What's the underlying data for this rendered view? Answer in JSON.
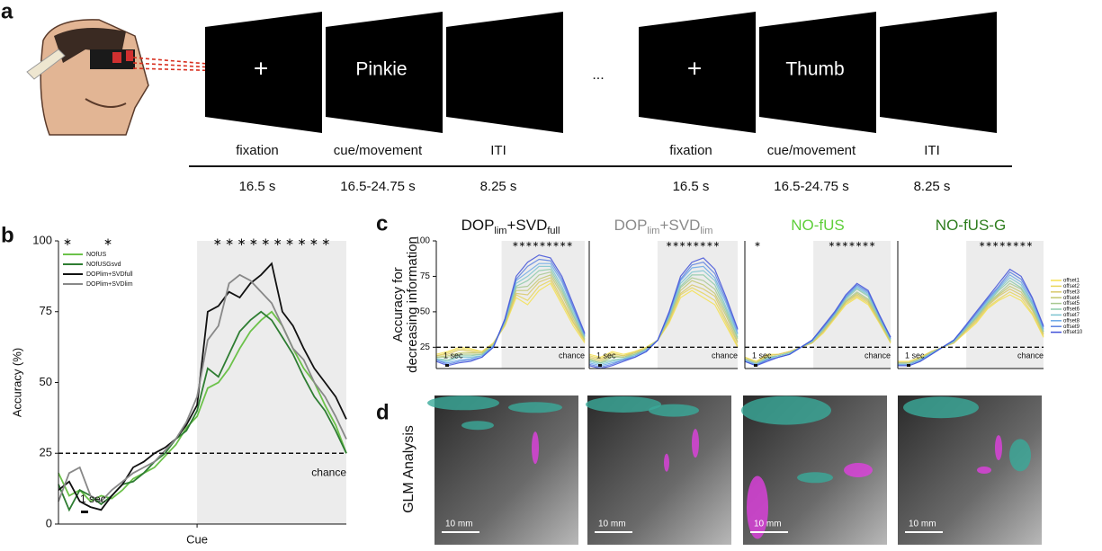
{
  "panel_labels": [
    "a",
    "b",
    "c",
    "d"
  ],
  "trial": {
    "screens": [
      {
        "text": "+",
        "label": "fixation",
        "duration": "16.5 s"
      },
      {
        "text": "Pinkie",
        "label": "cue/movement",
        "duration": "16.5-24.75 s"
      },
      {
        "label": "ITI",
        "duration": "8.25 s"
      },
      {
        "text": "+",
        "label": "fixation",
        "duration": "16.5 s"
      },
      {
        "text": "Thumb",
        "label": "cue/movement",
        "duration": "16.5-24.75 s"
      },
      {
        "label": "ITI",
        "duration": "8.25 s"
      }
    ],
    "ellipsis": "..."
  },
  "glm": {
    "y_label": "GLM Analysis",
    "scale_labels": [
      "10 mm",
      "10 mm",
      "10 mm",
      "10 mm"
    ]
  },
  "chart_data": [
    {
      "type": "line",
      "y_label": "Accuracy (%)",
      "categories": [
        null,
        null,
        null,
        null,
        null,
        null,
        null,
        null,
        null,
        null,
        null,
        null,
        null,
        "Cue",
        null,
        null,
        null,
        null,
        null,
        null,
        null,
        null,
        null,
        null,
        null,
        null,
        null,
        null
      ],
      "series": [
        {
          "name": "NOfUS",
          "color": "#6cc24a",
          "values": [
            18,
            10,
            12,
            8,
            10,
            9,
            12,
            16,
            18,
            20,
            24,
            28,
            34,
            38,
            48,
            50,
            55,
            62,
            68,
            72,
            75,
            70,
            62,
            55,
            50,
            42,
            35,
            25
          ]
        },
        {
          "name": "NOfUSGsvd",
          "color": "#2e7d32",
          "values": [
            14,
            5,
            12,
            10,
            7,
            10,
            14,
            15,
            18,
            22,
            25,
            30,
            33,
            40,
            55,
            52,
            60,
            68,
            72,
            75,
            72,
            66,
            60,
            52,
            45,
            40,
            33,
            25
          ]
        },
        {
          "name": "DOPlim+SVDfull",
          "color": "#111111",
          "values": [
            12,
            15,
            8,
            6,
            5,
            10,
            14,
            20,
            22,
            25,
            27,
            30,
            35,
            42,
            75,
            77,
            82,
            80,
            85,
            88,
            92,
            75,
            70,
            62,
            55,
            50,
            45,
            37
          ]
        },
        {
          "name": "DOPlim+SVDlim",
          "color": "#888888",
          "values": [
            8,
            18,
            20,
            10,
            8,
            12,
            15,
            18,
            20,
            22,
            26,
            30,
            36,
            45,
            65,
            70,
            85,
            88,
            86,
            82,
            78,
            70,
            62,
            58,
            50,
            45,
            38,
            30
          ]
        }
      ],
      "ylim": [
        0,
        100
      ],
      "yticks": [
        0,
        25,
        50,
        75,
        100
      ],
      "legend": "upper left",
      "chance_line": 25,
      "chance_label": "chance",
      "scale_label": "1 sec",
      "sig": [
        "∗",
        "∗",
        "∗ ∗ ∗ ∗ ∗ ∗ ∗ ∗ ∗ ∗"
      ]
    },
    {
      "type": "line",
      "title": [
        {
          "text": "DOP"
        },
        {
          "text": "lim",
          "sub": true
        },
        {
          "text": "+SVD"
        },
        {
          "text": "full",
          "sub": true
        }
      ],
      "title_color": "#111111",
      "y_label": [
        "Accuracy for",
        "decreasing information"
      ],
      "series": [
        {
          "name": "offset1",
          "color": "#f5e050",
          "values": [
            20,
            22,
            25,
            24,
            22,
            28,
            40,
            60,
            55,
            65,
            70,
            55,
            40,
            28
          ]
        },
        {
          "name": "offset2",
          "color": "#e8d55a",
          "values": [
            19,
            21,
            24,
            23,
            22,
            28,
            41,
            62,
            58,
            68,
            72,
            57,
            42,
            29
          ]
        },
        {
          "name": "offset3",
          "color": "#d8c86a",
          "values": [
            19,
            20,
            23,
            22,
            21,
            27,
            41,
            63,
            62,
            71,
            74,
            59,
            43,
            30
          ]
        },
        {
          "name": "offset4",
          "color": "#c2c870",
          "values": [
            18,
            19,
            21,
            21,
            21,
            27,
            42,
            65,
            65,
            73,
            76,
            62,
            45,
            30
          ]
        },
        {
          "name": "offset5",
          "color": "#a8c890",
          "values": [
            18,
            18,
            20,
            20,
            20,
            27,
            42,
            67,
            68,
            76,
            78,
            64,
            47,
            31
          ]
        },
        {
          "name": "offset6",
          "color": "#8ccaa8",
          "values": [
            17,
            16,
            19,
            19,
            20,
            26,
            43,
            68,
            72,
            79,
            80,
            66,
            48,
            32
          ]
        },
        {
          "name": "offset7",
          "color": "#7cc4d0",
          "values": [
            17,
            15,
            18,
            18,
            19,
            26,
            43,
            70,
            75,
            82,
            82,
            68,
            50,
            33
          ]
        },
        {
          "name": "offset8",
          "color": "#6aa8e8",
          "values": [
            16,
            14,
            16,
            17,
            19,
            26,
            44,
            72,
            78,
            84,
            84,
            71,
            52,
            33
          ]
        },
        {
          "name": "offset9",
          "color": "#5a80e0",
          "values": [
            16,
            13,
            15,
            16,
            18,
            25,
            44,
            73,
            82,
            87,
            86,
            73,
            53,
            34
          ]
        },
        {
          "name": "offset10",
          "color": "#4050d8",
          "values": [
            15,
            12,
            14,
            15,
            18,
            25,
            45,
            75,
            85,
            90,
            88,
            75,
            55,
            35
          ]
        }
      ],
      "ylim": [
        10,
        100
      ],
      "yticks": [
        25,
        50,
        75,
        100
      ],
      "chance_line": 25,
      "chance_label": "chance",
      "scale_label": "1 sec",
      "sig": [
        "∗∗∗∗∗∗∗∗∗"
      ]
    },
    {
      "type": "line",
      "title": [
        {
          "text": "DOP"
        },
        {
          "text": "lim",
          "sub": true
        },
        {
          "text": "+SVD"
        },
        {
          "text": "lim",
          "sub": true
        }
      ],
      "title_color": "#8a8a8a",
      "series": [
        {
          "color": "#f5e050",
          "values": [
            20,
            18,
            22,
            20,
            22,
            25,
            30,
            42,
            60,
            65,
            60,
            55,
            40,
            25
          ]
        },
        {
          "color": "#e8d55a",
          "values": [
            19,
            17,
            21,
            19,
            22,
            25,
            30,
            43,
            62,
            67,
            63,
            58,
            42,
            26
          ]
        },
        {
          "color": "#d8c86a",
          "values": [
            18,
            16,
            20,
            19,
            21,
            24,
            30,
            44,
            63,
            69,
            66,
            61,
            44,
            28
          ]
        },
        {
          "color": "#c2c870",
          "values": [
            17,
            15,
            19,
            18,
            21,
            24,
            30,
            45,
            65,
            72,
            69,
            63,
            47,
            29
          ]
        },
        {
          "color": "#a8c890",
          "values": [
            16,
            14,
            18,
            18,
            20,
            24,
            30,
            46,
            67,
            74,
            72,
            66,
            49,
            31
          ]
        },
        {
          "color": "#8ccaa8",
          "values": [
            16,
            14,
            16,
            17,
            20,
            23,
            30,
            46,
            68,
            76,
            76,
            69,
            51,
            32
          ]
        },
        {
          "color": "#7cc4d0",
          "values": [
            15,
            13,
            15,
            17,
            19,
            23,
            30,
            47,
            70,
            78,
            79,
            72,
            53,
            34
          ]
        },
        {
          "color": "#6aa8e8",
          "values": [
            14,
            12,
            14,
            16,
            19,
            23,
            30,
            48,
            72,
            81,
            82,
            74,
            56,
            35
          ]
        },
        {
          "color": "#5a80e0",
          "values": [
            13,
            11,
            13,
            16,
            18,
            22,
            30,
            49,
            73,
            83,
            85,
            77,
            58,
            37
          ]
        },
        {
          "color": "#4050d8",
          "values": [
            12,
            10,
            12,
            15,
            18,
            22,
            30,
            50,
            75,
            85,
            88,
            80,
            60,
            38
          ]
        }
      ],
      "ylim": [
        10,
        100
      ],
      "chance_line": 25,
      "chance_label": "chance",
      "scale_label": "1 sec",
      "sig": [
        "∗∗∗∗∗∗∗∗"
      ]
    },
    {
      "type": "line",
      "title": [
        {
          "text": "NO-fUS"
        }
      ],
      "title_color": "#5ecf3a",
      "series": [
        {
          "color": "#f5e050",
          "values": [
            18,
            15,
            20,
            20,
            22,
            25,
            28,
            35,
            45,
            55,
            60,
            55,
            42,
            28
          ]
        },
        {
          "color": "#e8d55a",
          "values": [
            18,
            15,
            19,
            20,
            22,
            25,
            28,
            36,
            46,
            56,
            61,
            56,
            43,
            28
          ]
        },
        {
          "color": "#d8c86a",
          "values": [
            17,
            14,
            19,
            20,
            22,
            25,
            28,
            36,
            46,
            57,
            62,
            57,
            43,
            29
          ]
        },
        {
          "color": "#c2c870",
          "values": [
            17,
            14,
            18,
            19,
            21,
            25,
            29,
            37,
            47,
            57,
            63,
            58,
            44,
            29
          ]
        },
        {
          "color": "#a8c890",
          "values": [
            17,
            14,
            18,
            19,
            21,
            25,
            29,
            37,
            47,
            58,
            64,
            59,
            45,
            30
          ]
        },
        {
          "color": "#8ccaa8",
          "values": [
            16,
            13,
            17,
            19,
            21,
            25,
            29,
            38,
            48,
            59,
            66,
            61,
            45,
            30
          ]
        },
        {
          "color": "#7cc4d0",
          "values": [
            16,
            13,
            17,
            19,
            21,
            25,
            29,
            38,
            48,
            60,
            67,
            62,
            46,
            31
          ]
        },
        {
          "color": "#6aa8e8",
          "values": [
            16,
            13,
            16,
            18,
            20,
            25,
            30,
            39,
            49,
            60,
            68,
            63,
            47,
            31
          ]
        },
        {
          "color": "#5a80e0",
          "values": [
            15,
            12,
            16,
            18,
            20,
            25,
            30,
            39,
            49,
            61,
            69,
            64,
            47,
            32
          ]
        },
        {
          "color": "#4050d8",
          "values": [
            15,
            12,
            15,
            18,
            20,
            25,
            30,
            40,
            50,
            62,
            70,
            65,
            48,
            32
          ]
        }
      ],
      "ylim": [
        10,
        100
      ],
      "chance_line": 25,
      "chance_label": "chance",
      "scale_label": "1 sec",
      "sig": [
        "∗",
        "∗∗∗∗∗∗∗"
      ]
    },
    {
      "type": "line",
      "title": [
        {
          "text": "NO-fUS-G"
        }
      ],
      "title_color": "#2e7d1e",
      "series": [
        {
          "color": "#f5e050",
          "values": [
            15,
            15,
            18,
            22,
            25,
            28,
            35,
            42,
            52,
            58,
            62,
            58,
            48,
            32
          ]
        },
        {
          "color": "#e8d55a",
          "values": [
            15,
            15,
            18,
            22,
            25,
            28,
            36,
            43,
            53,
            59,
            64,
            60,
            49,
            33
          ]
        },
        {
          "color": "#d8c86a",
          "values": [
            14,
            14,
            17,
            22,
            25,
            28,
            36,
            44,
            54,
            61,
            66,
            62,
            51,
            34
          ]
        },
        {
          "color": "#c2c870",
          "values": [
            14,
            14,
            17,
            21,
            25,
            29,
            37,
            45,
            55,
            62,
            68,
            64,
            52,
            35
          ]
        },
        {
          "color": "#a8c890",
          "values": [
            14,
            14,
            17,
            21,
            25,
            29,
            37,
            46,
            56,
            63,
            70,
            66,
            53,
            36
          ]
        },
        {
          "color": "#8ccaa8",
          "values": [
            13,
            13,
            16,
            21,
            25,
            29,
            38,
            46,
            56,
            65,
            72,
            67,
            55,
            36
          ]
        },
        {
          "color": "#7cc4d0",
          "values": [
            13,
            13,
            16,
            21,
            25,
            29,
            38,
            47,
            57,
            66,
            74,
            69,
            56,
            37
          ]
        },
        {
          "color": "#6aa8e8",
          "values": [
            13,
            13,
            16,
            20,
            25,
            30,
            39,
            48,
            58,
            67,
            76,
            71,
            57,
            38
          ]
        },
        {
          "color": "#5a80e0",
          "values": [
            12,
            12,
            15,
            20,
            25,
            30,
            39,
            49,
            59,
            68,
            78,
            73,
            59,
            39
          ]
        },
        {
          "color": "#4050d8",
          "values": [
            12,
            12,
            15,
            20,
            25,
            30,
            40,
            50,
            60,
            70,
            80,
            75,
            60,
            40
          ]
        }
      ],
      "ylim": [
        10,
        100
      ],
      "chance_line": 25,
      "chance_label": "chance",
      "scale_label": "1 sec",
      "sig": [
        "∗∗∗∗∗∗∗∗"
      ]
    }
  ]
}
